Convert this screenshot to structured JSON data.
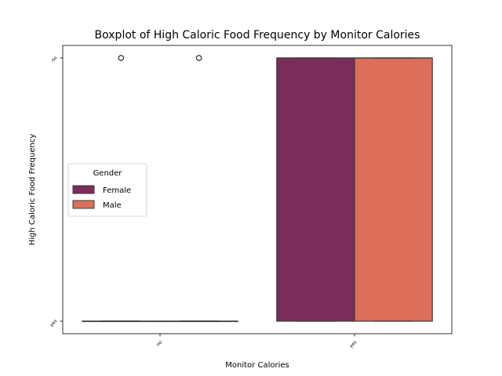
{
  "chart_data": {
    "type": "boxplot",
    "title": "Boxplot of High Caloric Food Frequency by Monitor Calories",
    "xlabel": "Monitor Calories",
    "ylabel": "High Caloric Food Frequency",
    "categories": [
      "no",
      "yes"
    ],
    "y_categories": [
      "yes",
      "no"
    ],
    "legend": {
      "title": "Gender",
      "placement": "center-left",
      "entries": [
        "Female",
        "Male"
      ]
    },
    "series": [
      {
        "name": "Female",
        "color": "#7b2c5b",
        "boxes": [
          {
            "category": "no",
            "whisker_low": 0,
            "q1": 0,
            "median": 0,
            "q3": 0,
            "whisker_high": 0,
            "outliers": [
              1
            ]
          },
          {
            "category": "yes",
            "whisker_low": 0,
            "q1": 0,
            "median": 1,
            "q3": 1,
            "whisker_high": 1,
            "outliers": []
          }
        ]
      },
      {
        "name": "Male",
        "color": "#dd6e5a",
        "boxes": [
          {
            "category": "no",
            "whisker_low": 0,
            "q1": 0,
            "median": 0,
            "q3": 0,
            "whisker_high": 0,
            "outliers": [
              1
            ]
          },
          {
            "category": "yes",
            "whisker_low": 0,
            "q1": 0,
            "median": 1,
            "q3": 1,
            "whisker_high": 1,
            "outliers": []
          }
        ]
      }
    ],
    "grid": false
  }
}
